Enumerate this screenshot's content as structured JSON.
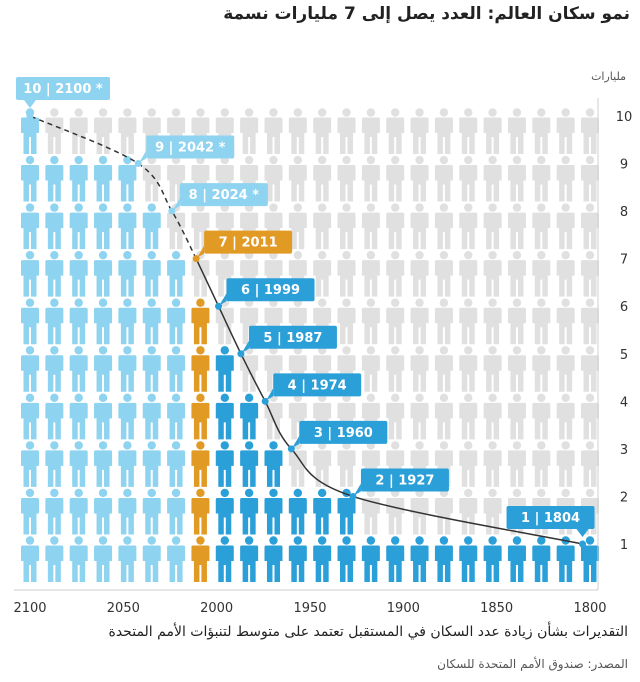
{
  "title": "نمو سكان العالم: العدد يصل إلى 7 مليارات نسمة",
  "footnote": "التقديرات بشأن زيادة عدد السكان في المستقبل تعتمد على متوسط لتنبؤات الأمم المتحدة",
  "source": "المصدر: صندوق الأمم المتحدة للسكان",
  "colors": {
    "historical": "#2a9fd8",
    "projected": "#8ed3f0",
    "highlight": "#e19a24",
    "empty": "#e0e0e0",
    "line": "#333333"
  },
  "chart_data": {
    "type": "line",
    "title": "نمو سكان العالم: العدد يصل إلى 7 مليارات نسمة",
    "ylabel": "مليارات",
    "xlabel": "",
    "x_axis_reversed": true,
    "xlim": [
      1800,
      2100
    ],
    "ylim": [
      0.5,
      10.5
    ],
    "x_ticks": [
      1800,
      1850,
      1900,
      1950,
      2000,
      2050,
      2100
    ],
    "y_ticks": [
      1,
      2,
      3,
      4,
      5,
      6,
      7,
      8,
      9,
      10
    ],
    "milestones": [
      {
        "billions": 1,
        "year": 1804,
        "label": "1 | 1804",
        "projected": false,
        "highlight": false
      },
      {
        "billions": 2,
        "year": 1927,
        "label": "2 | 1927",
        "projected": false,
        "highlight": false
      },
      {
        "billions": 3,
        "year": 1960,
        "label": "3 | 1960",
        "projected": false,
        "highlight": false
      },
      {
        "billions": 4,
        "year": 1974,
        "label": "4 | 1974",
        "projected": false,
        "highlight": false
      },
      {
        "billions": 5,
        "year": 1987,
        "label": "5 | 1987",
        "projected": false,
        "highlight": false
      },
      {
        "billions": 6,
        "year": 1999,
        "label": "6 | 1999",
        "projected": false,
        "highlight": false
      },
      {
        "billions": 7,
        "year": 2011,
        "label": "7 | 2011",
        "projected": false,
        "highlight": true
      },
      {
        "billions": 8,
        "year": 2024,
        "label": "8 | 2024 *",
        "projected": true,
        "highlight": false
      },
      {
        "billions": 9,
        "year": 2042,
        "label": "9 | 2042 *",
        "projected": true,
        "highlight": false
      },
      {
        "billions": 10,
        "year": 2100,
        "label": "10 | 2100 *",
        "projected": true,
        "highlight": false
      }
    ]
  }
}
